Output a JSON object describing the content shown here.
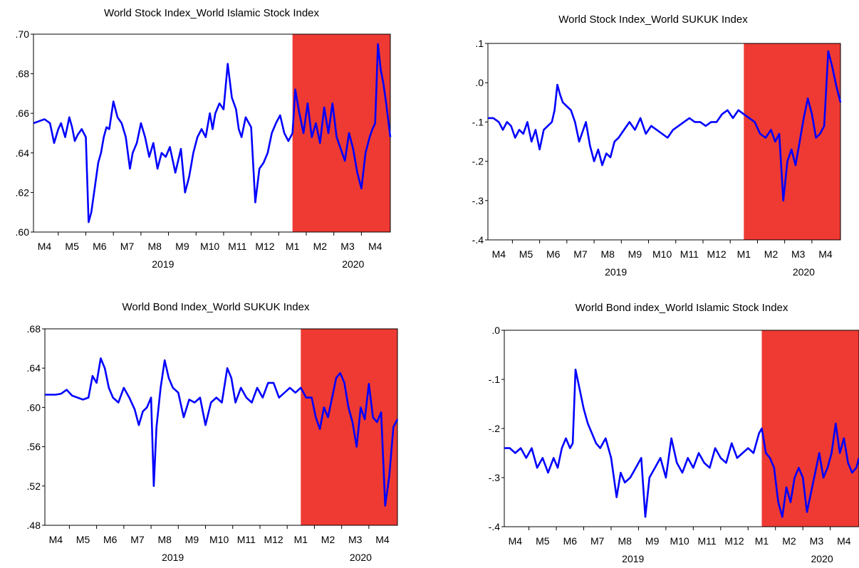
{
  "colors": {
    "line": "#0000ff",
    "shade": "#ee3a33",
    "axis": "#000000",
    "background": "#ffffff"
  },
  "chart_data": [
    {
      "type": "line",
      "title": "World Stock Index_World Islamic Stock Index",
      "xlabel": "",
      "ylabel": "",
      "ylim": [
        0.6,
        0.7
      ],
      "yticks": [
        0.6,
        0.62,
        0.64,
        0.66,
        0.68,
        0.7
      ],
      "yticklabels": [
        ".60",
        ".62",
        ".64",
        ".66",
        ".68",
        ".70"
      ],
      "xlim": [
        3.6,
        16.55
      ],
      "xticks": [
        4,
        5,
        6,
        7,
        8,
        9,
        10,
        11,
        12,
        13,
        14,
        15,
        16
      ],
      "xticklabels": [
        "M4",
        "M5",
        "M6",
        "M7",
        "M8",
        "M9",
        "M10",
        "M11",
        "M12",
        "M1",
        "M2",
        "M3",
        "M4"
      ],
      "year_labels": [
        {
          "label": "2019",
          "at": 8.3
        },
        {
          "label": "2020",
          "at": 15.2
        }
      ],
      "shaded_region": [
        13.0,
        16.55
      ],
      "grid": false,
      "legend": "none",
      "series": [
        {
          "x": [
            3.6,
            3.8,
            4.0,
            4.2,
            4.35,
            4.5,
            4.6,
            4.75,
            4.9,
            5.0,
            5.1,
            5.2,
            5.35,
            5.5,
            5.6,
            5.7,
            5.8,
            5.95,
            6.05,
            6.15,
            6.25,
            6.35,
            6.5,
            6.65,
            6.8,
            6.95,
            7.1,
            7.2,
            7.35,
            7.5,
            7.65,
            7.8,
            7.95,
            8.1,
            8.25,
            8.4,
            8.55,
            8.75,
            8.95,
            9.1,
            9.25,
            9.4,
            9.55,
            9.7,
            9.85,
            10.0,
            10.1,
            10.2,
            10.35,
            10.5,
            10.65,
            10.8,
            10.95,
            11.05,
            11.15,
            11.3,
            11.5,
            11.65,
            11.8,
            11.95,
            12.1,
            12.25,
            12.4,
            12.55,
            12.7,
            12.85,
            13.0,
            13.1,
            13.25,
            13.4,
            13.55,
            13.7,
            13.85,
            14.0,
            14.15,
            14.3,
            14.45,
            14.6,
            14.75,
            14.9,
            15.05,
            15.2,
            15.35,
            15.5,
            15.65,
            15.8,
            15.9,
            16.0,
            16.1,
            16.2,
            16.3,
            16.4,
            16.55
          ],
          "y": [
            0.655,
            0.656,
            0.657,
            0.655,
            0.645,
            0.652,
            0.655,
            0.648,
            0.658,
            0.653,
            0.646,
            0.649,
            0.652,
            0.648,
            0.605,
            0.61,
            0.62,
            0.635,
            0.64,
            0.648,
            0.653,
            0.652,
            0.666,
            0.658,
            0.655,
            0.648,
            0.632,
            0.64,
            0.645,
            0.655,
            0.648,
            0.638,
            0.645,
            0.632,
            0.64,
            0.638,
            0.643,
            0.63,
            0.642,
            0.62,
            0.628,
            0.64,
            0.648,
            0.652,
            0.648,
            0.66,
            0.652,
            0.66,
            0.665,
            0.662,
            0.685,
            0.668,
            0.662,
            0.652,
            0.648,
            0.658,
            0.653,
            0.615,
            0.632,
            0.635,
            0.64,
            0.65,
            0.655,
            0.659,
            0.65,
            0.646,
            0.65,
            0.672,
            0.66,
            0.65,
            0.665,
            0.648,
            0.655,
            0.645,
            0.663,
            0.65,
            0.665,
            0.648,
            0.642,
            0.636,
            0.65,
            0.642,
            0.63,
            0.622,
            0.64,
            0.648,
            0.652,
            0.655,
            0.695,
            0.682,
            0.675,
            0.665,
            0.648
          ]
        }
      ]
    },
    {
      "type": "line",
      "title": "World Stock Index_World SUKUK Index",
      "xlabel": "",
      "ylabel": "",
      "ylim": [
        -0.4,
        0.1
      ],
      "yticks": [
        -0.4,
        -0.3,
        -0.2,
        -0.1,
        0.0,
        0.1
      ],
      "yticklabels": [
        "-.4",
        "-.3",
        "-.2",
        "-.1",
        ".0",
        ".1"
      ],
      "xlim": [
        3.6,
        16.55
      ],
      "xticks": [
        4,
        5,
        6,
        7,
        8,
        9,
        10,
        11,
        12,
        13,
        14,
        15,
        16
      ],
      "xticklabels": [
        "M4",
        "M5",
        "M6",
        "M7",
        "M8",
        "M9",
        "M10",
        "M11",
        "M12",
        "M1",
        "M2",
        "M3",
        "M4"
      ],
      "year_labels": [
        {
          "label": "2019",
          "at": 8.3
        },
        {
          "label": "2020",
          "at": 15.2
        }
      ],
      "shaded_region": [
        13.0,
        16.55
      ],
      "grid": false,
      "legend": "none",
      "series": [
        {
          "x": [
            3.6,
            3.8,
            4.0,
            4.15,
            4.3,
            4.45,
            4.6,
            4.75,
            4.9,
            5.05,
            5.2,
            5.35,
            5.5,
            5.65,
            5.8,
            5.95,
            6.05,
            6.15,
            6.25,
            6.35,
            6.5,
            6.65,
            6.8,
            6.95,
            7.1,
            7.2,
            7.35,
            7.5,
            7.65,
            7.8,
            7.95,
            8.1,
            8.25,
            8.4,
            8.6,
            8.8,
            9.0,
            9.2,
            9.4,
            9.6,
            9.8,
            10.0,
            10.2,
            10.4,
            10.6,
            10.8,
            11.0,
            11.2,
            11.4,
            11.6,
            11.8,
            12.0,
            12.2,
            12.4,
            12.6,
            12.8,
            13.0,
            13.2,
            13.4,
            13.6,
            13.8,
            14.0,
            14.15,
            14.3,
            14.45,
            14.6,
            14.75,
            14.9,
            15.05,
            15.2,
            15.35,
            15.5,
            15.65,
            15.8,
            15.95,
            16.1,
            16.25,
            16.4,
            16.55
          ],
          "y": [
            -0.09,
            -0.09,
            -0.1,
            -0.12,
            -0.1,
            -0.11,
            -0.14,
            -0.12,
            -0.13,
            -0.1,
            -0.15,
            -0.12,
            -0.17,
            -0.12,
            -0.11,
            -0.1,
            -0.07,
            -0.005,
            -0.03,
            -0.05,
            -0.06,
            -0.07,
            -0.1,
            -0.15,
            -0.12,
            -0.1,
            -0.16,
            -0.2,
            -0.17,
            -0.21,
            -0.18,
            -0.19,
            -0.15,
            -0.14,
            -0.12,
            -0.1,
            -0.12,
            -0.09,
            -0.13,
            -0.11,
            -0.12,
            -0.13,
            -0.14,
            -0.12,
            -0.11,
            -0.1,
            -0.09,
            -0.1,
            -0.1,
            -0.11,
            -0.1,
            -0.1,
            -0.08,
            -0.07,
            -0.09,
            -0.07,
            -0.08,
            -0.09,
            -0.1,
            -0.13,
            -0.14,
            -0.12,
            -0.15,
            -0.13,
            -0.3,
            -0.2,
            -0.17,
            -0.21,
            -0.15,
            -0.09,
            -0.04,
            -0.08,
            -0.14,
            -0.13,
            -0.11,
            0.08,
            0.04,
            -0.01,
            -0.05
          ]
        }
      ]
    },
    {
      "type": "line",
      "title": "World Bond Index_World SUKUK Index",
      "xlabel": "",
      "ylabel": "",
      "ylim": [
        0.48,
        0.68
      ],
      "yticks": [
        0.48,
        0.52,
        0.56,
        0.6,
        0.64,
        0.68
      ],
      "yticklabels": [
        ".48",
        ".52",
        ".56",
        ".60",
        ".64",
        ".68"
      ],
      "xlim": [
        3.6,
        16.55
      ],
      "xticks": [
        4,
        5,
        6,
        7,
        8,
        9,
        10,
        11,
        12,
        13,
        14,
        15,
        16
      ],
      "xticklabels": [
        "M4",
        "M5",
        "M6",
        "M7",
        "M8",
        "M9",
        "M10",
        "M11",
        "M12",
        "M1",
        "M2",
        "M3",
        "M4"
      ],
      "year_labels": [
        {
          "label": "2019",
          "at": 8.3
        },
        {
          "label": "2020",
          "at": 15.2
        }
      ],
      "shaded_region": [
        13.0,
        16.55
      ],
      "grid": false,
      "legend": "none",
      "series": [
        {
          "x": [
            3.6,
            3.8,
            4.0,
            4.2,
            4.4,
            4.6,
            4.8,
            5.0,
            5.2,
            5.35,
            5.5,
            5.65,
            5.8,
            5.95,
            6.1,
            6.3,
            6.5,
            6.7,
            6.9,
            7.05,
            7.2,
            7.35,
            7.5,
            7.6,
            7.7,
            7.85,
            8.0,
            8.15,
            8.3,
            8.5,
            8.7,
            8.9,
            9.1,
            9.3,
            9.5,
            9.7,
            9.9,
            10.1,
            10.3,
            10.45,
            10.6,
            10.8,
            11.0,
            11.2,
            11.4,
            11.6,
            11.8,
            12.0,
            12.2,
            12.4,
            12.6,
            12.8,
            13.0,
            13.2,
            13.4,
            13.55,
            13.7,
            13.85,
            14.0,
            14.15,
            14.3,
            14.45,
            14.6,
            14.75,
            14.9,
            15.05,
            15.2,
            15.35,
            15.5,
            15.65,
            15.8,
            15.95,
            16.1,
            16.25,
            16.4,
            16.55
          ],
          "y": [
            0.613,
            0.613,
            0.613,
            0.614,
            0.618,
            0.612,
            0.61,
            0.608,
            0.61,
            0.632,
            0.625,
            0.65,
            0.64,
            0.62,
            0.61,
            0.605,
            0.62,
            0.61,
            0.598,
            0.582,
            0.596,
            0.6,
            0.61,
            0.52,
            0.58,
            0.62,
            0.648,
            0.63,
            0.62,
            0.615,
            0.59,
            0.608,
            0.605,
            0.61,
            0.582,
            0.605,
            0.61,
            0.605,
            0.64,
            0.63,
            0.605,
            0.62,
            0.61,
            0.605,
            0.62,
            0.61,
            0.625,
            0.625,
            0.61,
            0.615,
            0.62,
            0.615,
            0.62,
            0.61,
            0.61,
            0.59,
            0.578,
            0.6,
            0.59,
            0.61,
            0.63,
            0.635,
            0.625,
            0.6,
            0.585,
            0.56,
            0.6,
            0.588,
            0.624,
            0.59,
            0.585,
            0.595,
            0.5,
            0.53,
            0.58,
            0.588
          ]
        }
      ]
    },
    {
      "type": "line",
      "title": "World Bond index_World Islamic Stock Index",
      "xlabel": "",
      "ylabel": "",
      "ylim": [
        -0.4,
        0.0
      ],
      "yticks": [
        -0.4,
        -0.3,
        -0.2,
        -0.1,
        0.0
      ],
      "yticklabels": [
        "-.4",
        "-.3",
        "-.2",
        "-.1",
        ".0"
      ],
      "xlim": [
        3.6,
        16.55
      ],
      "xticks": [
        4,
        5,
        6,
        7,
        8,
        9,
        10,
        11,
        12,
        13,
        14,
        15,
        16
      ],
      "xticklabels": [
        "M4",
        "M5",
        "M6",
        "M7",
        "M8",
        "M9",
        "M10",
        "M11",
        "M12",
        "M1",
        "M2",
        "M3",
        "M4"
      ],
      "year_labels": [
        {
          "label": "2019",
          "at": 8.3
        },
        {
          "label": "2020",
          "at": 15.2
        }
      ],
      "shaded_region": [
        13.0,
        16.55
      ],
      "grid": false,
      "legend": "none",
      "series": [
        {
          "x": [
            3.6,
            3.8,
            4.0,
            4.2,
            4.4,
            4.6,
            4.8,
            5.0,
            5.2,
            5.4,
            5.55,
            5.7,
            5.85,
            6.0,
            6.1,
            6.2,
            6.35,
            6.5,
            6.65,
            6.8,
            6.95,
            7.1,
            7.3,
            7.5,
            7.7,
            7.85,
            8.0,
            8.2,
            8.4,
            8.6,
            8.75,
            8.9,
            9.1,
            9.3,
            9.5,
            9.7,
            9.9,
            10.1,
            10.3,
            10.5,
            10.7,
            10.9,
            11.1,
            11.3,
            11.5,
            11.7,
            11.9,
            12.1,
            12.3,
            12.5,
            12.7,
            12.9,
            13.0,
            13.15,
            13.3,
            13.45,
            13.6,
            13.75,
            13.9,
            14.05,
            14.2,
            14.35,
            14.5,
            14.65,
            14.8,
            14.95,
            15.1,
            15.25,
            15.4,
            15.55,
            15.7,
            15.85,
            16.0,
            16.15,
            16.3,
            16.45,
            16.55
          ],
          "y": [
            -0.24,
            -0.24,
            -0.25,
            -0.24,
            -0.26,
            -0.24,
            -0.28,
            -0.26,
            -0.29,
            -0.26,
            -0.28,
            -0.24,
            -0.22,
            -0.24,
            -0.23,
            -0.08,
            -0.12,
            -0.16,
            -0.19,
            -0.21,
            -0.23,
            -0.24,
            -0.22,
            -0.26,
            -0.34,
            -0.29,
            -0.31,
            -0.3,
            -0.28,
            -0.26,
            -0.38,
            -0.3,
            -0.28,
            -0.26,
            -0.3,
            -0.22,
            -0.27,
            -0.29,
            -0.26,
            -0.28,
            -0.25,
            -0.27,
            -0.28,
            -0.24,
            -0.26,
            -0.27,
            -0.23,
            -0.26,
            -0.25,
            -0.24,
            -0.25,
            -0.21,
            -0.2,
            -0.25,
            -0.26,
            -0.28,
            -0.35,
            -0.38,
            -0.32,
            -0.35,
            -0.3,
            -0.28,
            -0.3,
            -0.37,
            -0.33,
            -0.29,
            -0.25,
            -0.3,
            -0.28,
            -0.25,
            -0.19,
            -0.25,
            -0.22,
            -0.27,
            -0.29,
            -0.28,
            -0.26
          ]
        }
      ]
    }
  ]
}
